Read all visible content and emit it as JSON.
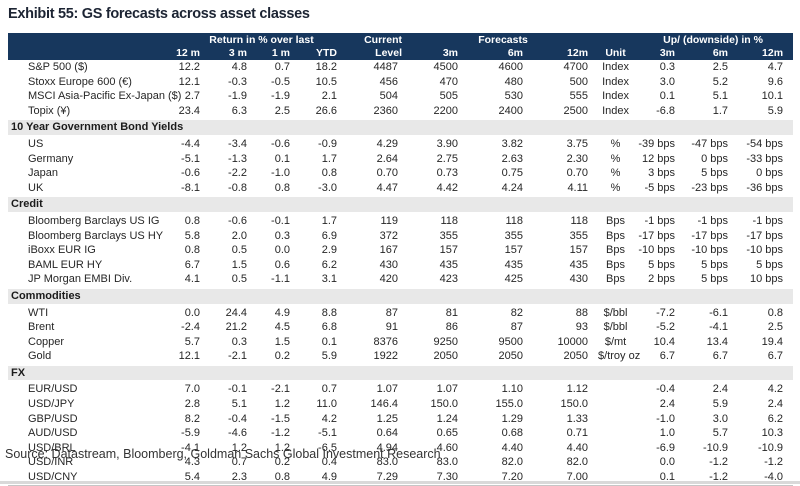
{
  "title": "Exhibit 55: GS forecasts across asset classes",
  "source": "Source: Datastream, Bloomberg, Goldman Sachs Global Investment Research",
  "colors": {
    "header_bg": "#17375d",
    "header_text": "#ffffff",
    "section_bg": "#e8e8e8",
    "body_text": "#262626",
    "title_text": "#1c2433"
  },
  "table": {
    "header": {
      "groups": {
        "return": "Return in % over last",
        "current_top": "Current",
        "forecasts": "Forecasts",
        "upside": "Up/ (downside) in %"
      },
      "sub": [
        "12 m",
        "3 m",
        "1 m",
        "YTD",
        "Level",
        "3m",
        "6m",
        "12m",
        "Unit",
        "3m",
        "6m",
        "12m"
      ]
    },
    "sections": [
      {
        "name": "",
        "rows": [
          [
            "S&P 500 ($)",
            "12.2",
            "4.8",
            "0.7",
            "18.2",
            "4487",
            "4500",
            "4600",
            "4700",
            "Index",
            "0.3",
            "2.5",
            "4.7"
          ],
          [
            "Stoxx Europe 600 (€)",
            "12.1",
            "-0.3",
            "-0.5",
            "10.5",
            "456",
            "470",
            "480",
            "500",
            "Index",
            "3.0",
            "5.2",
            "9.6"
          ],
          [
            "MSCI Asia-Pacific Ex-Japan ($)",
            "2.7",
            "-1.9",
            "-1.9",
            "2.1",
            "504",
            "505",
            "530",
            "555",
            "Index",
            "0.1",
            "5.1",
            "10.1"
          ],
          [
            "Topix (¥)",
            "23.4",
            "6.3",
            "2.5",
            "26.6",
            "2360",
            "2200",
            "2400",
            "2500",
            "Index",
            "-6.8",
            "1.7",
            "5.9"
          ]
        ]
      },
      {
        "name": "10 Year Government Bond Yields",
        "rows": [
          [
            "US",
            "-4.4",
            "-3.4",
            "-0.6",
            "-0.9",
            "4.29",
            "3.90",
            "3.82",
            "3.75",
            "%",
            "-39 bps",
            "-47 bps",
            "-54 bps"
          ],
          [
            "Germany",
            "-5.1",
            "-1.3",
            "0.1",
            "1.7",
            "2.64",
            "2.75",
            "2.63",
            "2.30",
            "%",
            "12 bps",
            "0 bps",
            "-33 bps"
          ],
          [
            "Japan",
            "-0.6",
            "-2.2",
            "-1.0",
            "0.8",
            "0.70",
            "0.73",
            "0.75",
            "0.70",
            "%",
            "3 bps",
            "5 bps",
            "0 bps"
          ],
          [
            "UK",
            "-8.1",
            "-0.8",
            "0.8",
            "-3.0",
            "4.47",
            "4.42",
            "4.24",
            "4.11",
            "%",
            "-5 bps",
            "-23 bps",
            "-36 bps"
          ]
        ]
      },
      {
        "name": "Credit",
        "rows": [
          [
            "Bloomberg Barclays US IG",
            "0.8",
            "-0.6",
            "-0.1",
            "1.7",
            "119",
            "118",
            "118",
            "118",
            "Bps",
            "-1 bps",
            "-1 bps",
            "-1 bps"
          ],
          [
            "Bloomberg Barclays US HY",
            "5.8",
            "2.0",
            "0.3",
            "6.9",
            "372",
            "355",
            "355",
            "355",
            "Bps",
            "-17 bps",
            "-17 bps",
            "-17 bps"
          ],
          [
            "iBoxx EUR IG",
            "0.8",
            "0.5",
            "0.0",
            "2.9",
            "167",
            "157",
            "157",
            "157",
            "Bps",
            "-10 bps",
            "-10 bps",
            "-10 bps"
          ],
          [
            "BAML EUR HY",
            "6.7",
            "1.5",
            "0.6",
            "6.2",
            "430",
            "435",
            "435",
            "435",
            "Bps",
            "5 bps",
            "5 bps",
            "5 bps"
          ],
          [
            "JP Morgan EMBI Div.",
            "4.1",
            "0.5",
            "-1.1",
            "3.1",
            "420",
            "423",
            "425",
            "430",
            "Bps",
            "2 bps",
            "5 bps",
            "10 bps"
          ]
        ]
      },
      {
        "name": "Commodities",
        "rows": [
          [
            "WTI",
            "0.0",
            "24.4",
            "4.9",
            "8.8",
            "87",
            "81",
            "82",
            "88",
            "$/bbl",
            "-7.2",
            "-6.1",
            "0.8"
          ],
          [
            "Brent",
            "-2.4",
            "21.2",
            "4.5",
            "6.8",
            "91",
            "86",
            "87",
            "93",
            "$/bbl",
            "-5.2",
            "-4.1",
            "2.5"
          ],
          [
            "Copper",
            "5.7",
            "0.3",
            "1.5",
            "0.1",
            "8376",
            "9250",
            "9500",
            "10000",
            "$/mt",
            "10.4",
            "13.4",
            "19.4"
          ],
          [
            "Gold",
            "12.1",
            "-2.1",
            "0.2",
            "5.9",
            "1922",
            "2050",
            "2050",
            "2050",
            "$/troy oz",
            "6.7",
            "6.7",
            "6.7"
          ]
        ]
      },
      {
        "name": "FX",
        "rows": [
          [
            "EUR/USD",
            "7.0",
            "-0.1",
            "-2.1",
            "0.7",
            "1.07",
            "1.07",
            "1.10",
            "1.12",
            "",
            "-0.4",
            "2.4",
            "4.2"
          ],
          [
            "USD/JPY",
            "2.8",
            "5.1",
            "1.2",
            "11.0",
            "146.4",
            "150.0",
            "155.0",
            "150.0",
            "",
            "2.4",
            "5.9",
            "2.4"
          ],
          [
            "GBP/USD",
            "8.2",
            "-0.4",
            "-1.5",
            "4.2",
            "1.25",
            "1.24",
            "1.29",
            "1.33",
            "",
            "-1.0",
            "3.0",
            "6.2"
          ],
          [
            "AUD/USD",
            "-5.9",
            "-4.6",
            "-1.2",
            "-5.1",
            "0.64",
            "0.65",
            "0.68",
            "0.71",
            "",
            "1.0",
            "5.7",
            "10.3"
          ],
          [
            "USD/BRL",
            "-4.1",
            "1.2",
            "1.2",
            "-6.5",
            "4.94",
            "4.60",
            "4.40",
            "4.40",
            "",
            "-6.9",
            "-10.9",
            "-10.9"
          ],
          [
            "USD/INR",
            "4.3",
            "0.7",
            "0.2",
            "0.4",
            "83.0",
            "83.0",
            "82.0",
            "82.0",
            "",
            "0.0",
            "-1.2",
            "-1.2"
          ],
          [
            "USD/CNY",
            "5.4",
            "2.3",
            "0.8",
            "4.9",
            "7.29",
            "7.30",
            "7.20",
            "7.00",
            "",
            "0.1",
            "-1.2",
            "-4.0"
          ]
        ]
      }
    ]
  }
}
